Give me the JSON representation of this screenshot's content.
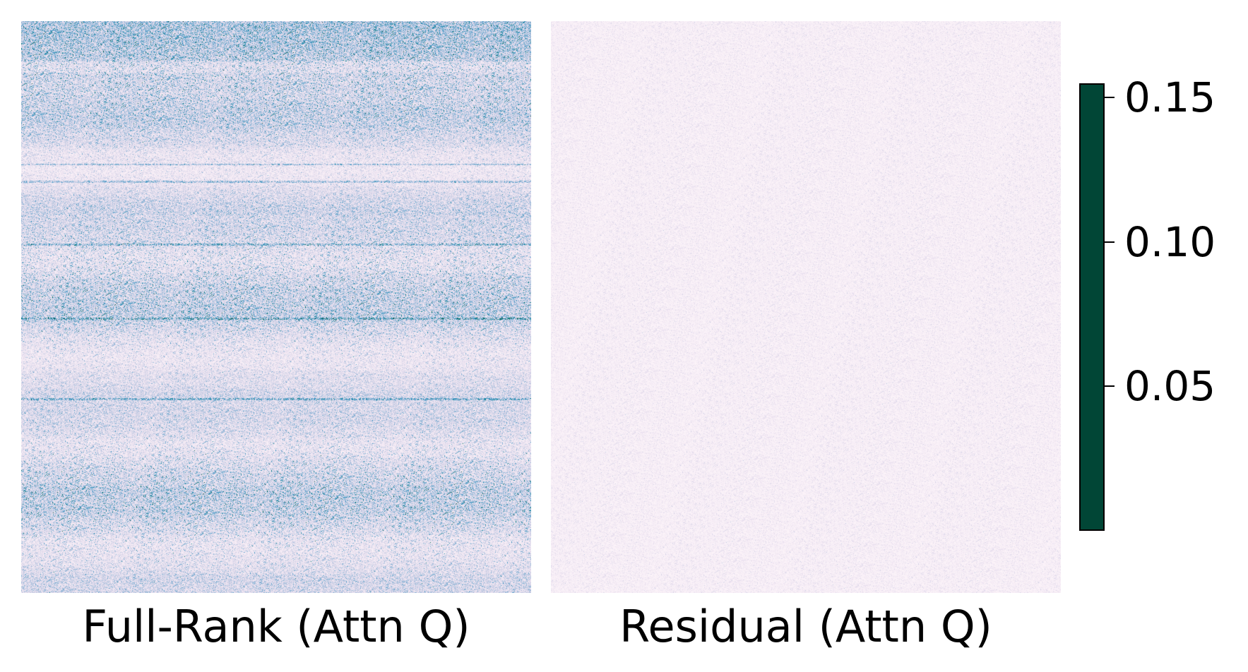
{
  "chart_data": [
    {
      "type": "heatmap",
      "title": "Full-Rank (Attn Q)",
      "colormap": "PuBuGn",
      "value_range": [
        0.0,
        0.155
      ],
      "appearance": "strong row-wise structure; darker horizontal bands near the top rows and several thin bright row lines; values mostly 0.02–0.10",
      "grid": false,
      "axes_visible": false
    },
    {
      "type": "heatmap",
      "title": "Residual (Attn Q)",
      "colormap": "PuBuGn",
      "value_range": [
        0.0,
        0.155
      ],
      "appearance": "nearly uniform low magnitude noise; values mostly 0.00–0.03",
      "grid": false,
      "axes_visible": false
    }
  ],
  "colorbar": {
    "min": 0.0,
    "max": 0.155,
    "ticks": [
      {
        "value": 0.05,
        "label": "0.05"
      },
      {
        "value": 0.1,
        "label": "0.10"
      },
      {
        "value": 0.15,
        "label": "0.15"
      }
    ],
    "colors": [
      "#fff7fb",
      "#ece2f0",
      "#d0d1e6",
      "#a6bddb",
      "#67a9cf",
      "#3690c0",
      "#02818a",
      "#016c59",
      "#014636"
    ]
  }
}
